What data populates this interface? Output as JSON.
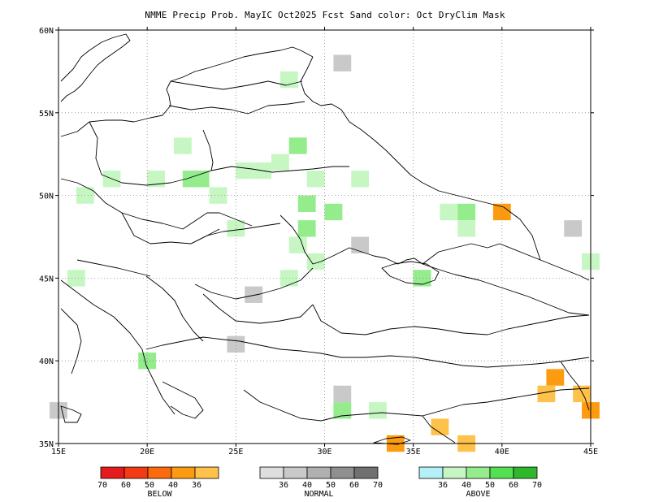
{
  "title": "NMME Precip Prob. MayIC  Oct2025 Fcst  Sand color: Oct DryClim Mask",
  "axes": {
    "lat_labels": [
      "60N",
      "55N",
      "50N",
      "45N",
      "40N",
      "35N"
    ],
    "lon_labels": [
      "15E",
      "20E",
      "25E",
      "30E",
      "35E",
      "40E",
      "45E"
    ]
  },
  "chart_data": {
    "type": "heatmap",
    "region": {
      "lon_min": 15,
      "lon_max": 45,
      "lat_min": 35,
      "lat_max": 60
    },
    "grid": "on",
    "categories": {
      "below": {
        "label": "BELOW",
        "levels": [
          "70",
          "60",
          "50",
          "40",
          "36"
        ],
        "colors": [
          "#e41a1c",
          "#f33a12",
          "#fb6a0c",
          "#fd9b10",
          "#fec24a"
        ]
      },
      "normal": {
        "label": "NORMAL",
        "levels": [
          "36",
          "40",
          "50",
          "60",
          "70"
        ],
        "colors": [
          "#dedede",
          "#c9c9c9",
          "#b0b0b0",
          "#8f8f8f",
          "#707070"
        ]
      },
      "above": {
        "label": "ABOVE",
        "levels": [
          "36",
          "40",
          "50",
          "60",
          "70"
        ],
        "colors": [
          "#b3f0f8",
          "#c6f7c3",
          "#94ec8c",
          "#54e052",
          "#2fb72c"
        ]
      }
    },
    "cells": [
      {
        "lon": 25.5,
        "lat": 51.5,
        "cat": "above",
        "level": "40"
      },
      {
        "lon": 27.5,
        "lat": 52.0,
        "cat": "above",
        "level": "40"
      },
      {
        "lon": 26.5,
        "lat": 51.5,
        "cat": "above",
        "level": "40"
      },
      {
        "lon": 28.5,
        "lat": 53.0,
        "cat": "above",
        "level": "50"
      },
      {
        "lon": 22.0,
        "lat": 53.0,
        "cat": "above",
        "level": "40"
      },
      {
        "lon": 23.0,
        "lat": 51.0,
        "cat": "above",
        "level": "50"
      },
      {
        "lon": 22.5,
        "lat": 51.0,
        "cat": "above",
        "level": "50"
      },
      {
        "lon": 20.5,
        "lat": 51.0,
        "cat": "above",
        "level": "40"
      },
      {
        "lon": 18.0,
        "lat": 51.0,
        "cat": "above",
        "level": "40"
      },
      {
        "lon": 16.5,
        "lat": 50.0,
        "cat": "above",
        "level": "40"
      },
      {
        "lon": 28.0,
        "lat": 57.0,
        "cat": "above",
        "level": "40"
      },
      {
        "lon": 29.0,
        "lat": 49.5,
        "cat": "above",
        "level": "50"
      },
      {
        "lon": 30.5,
        "lat": 49.0,
        "cat": "above",
        "level": "50"
      },
      {
        "lon": 32.0,
        "lat": 51.0,
        "cat": "above",
        "level": "40"
      },
      {
        "lon": 29.5,
        "lat": 51.0,
        "cat": "above",
        "level": "40"
      },
      {
        "lon": 24.0,
        "lat": 50.0,
        "cat": "above",
        "level": "40"
      },
      {
        "lon": 25.0,
        "lat": 48.0,
        "cat": "above",
        "level": "40"
      },
      {
        "lon": 29.0,
        "lat": 48.0,
        "cat": "above",
        "level": "50"
      },
      {
        "lon": 28.5,
        "lat": 47.0,
        "cat": "above",
        "level": "40"
      },
      {
        "lon": 29.5,
        "lat": 46.0,
        "cat": "above",
        "level": "40"
      },
      {
        "lon": 28.0,
        "lat": 45.0,
        "cat": "above",
        "level": "40"
      },
      {
        "lon": 37.0,
        "lat": 49.0,
        "cat": "above",
        "level": "40"
      },
      {
        "lon": 38.0,
        "lat": 49.0,
        "cat": "above",
        "level": "50"
      },
      {
        "lon": 38.0,
        "lat": 48.0,
        "cat": "above",
        "level": "40"
      },
      {
        "lon": 35.5,
        "lat": 45.0,
        "cat": "above",
        "level": "50"
      },
      {
        "lon": 45.0,
        "lat": 46.0,
        "cat": "above",
        "level": "40"
      },
      {
        "lon": 16.0,
        "lat": 45.0,
        "cat": "above",
        "level": "40"
      },
      {
        "lon": 20.0,
        "lat": 40.0,
        "cat": "above",
        "level": "50"
      },
      {
        "lon": 31.0,
        "lat": 37.0,
        "cat": "above",
        "level": "50"
      },
      {
        "lon": 33.0,
        "lat": 37.0,
        "cat": "above",
        "level": "40"
      },
      {
        "lon": 31.0,
        "lat": 58.0,
        "cat": "normal",
        "level": "40"
      },
      {
        "lon": 32.0,
        "lat": 47.0,
        "cat": "normal",
        "level": "40"
      },
      {
        "lon": 26.0,
        "lat": 44.0,
        "cat": "normal",
        "level": "40"
      },
      {
        "lon": 25.0,
        "lat": 41.0,
        "cat": "normal",
        "level": "40"
      },
      {
        "lon": 31.0,
        "lat": 38.0,
        "cat": "normal",
        "level": "40"
      },
      {
        "lon": 15.0,
        "lat": 37.0,
        "cat": "normal",
        "level": "40"
      },
      {
        "lon": 44.0,
        "lat": 48.0,
        "cat": "normal",
        "level": "40"
      },
      {
        "lon": 40.0,
        "lat": 49.0,
        "cat": "below",
        "level": "40"
      },
      {
        "lon": 43.0,
        "lat": 39.0,
        "cat": "below",
        "level": "40"
      },
      {
        "lon": 42.5,
        "lat": 38.0,
        "cat": "below",
        "level": "36"
      },
      {
        "lon": 44.5,
        "lat": 38.0,
        "cat": "below",
        "level": "36"
      },
      {
        "lon": 45.0,
        "lat": 37.0,
        "cat": "below",
        "level": "40"
      },
      {
        "lon": 36.5,
        "lat": 36.0,
        "cat": "below",
        "level": "36"
      },
      {
        "lon": 38.0,
        "lat": 35.0,
        "cat": "below",
        "level": "36"
      },
      {
        "lon": 34.0,
        "lat": 35.0,
        "cat": "below",
        "level": "40"
      }
    ]
  }
}
